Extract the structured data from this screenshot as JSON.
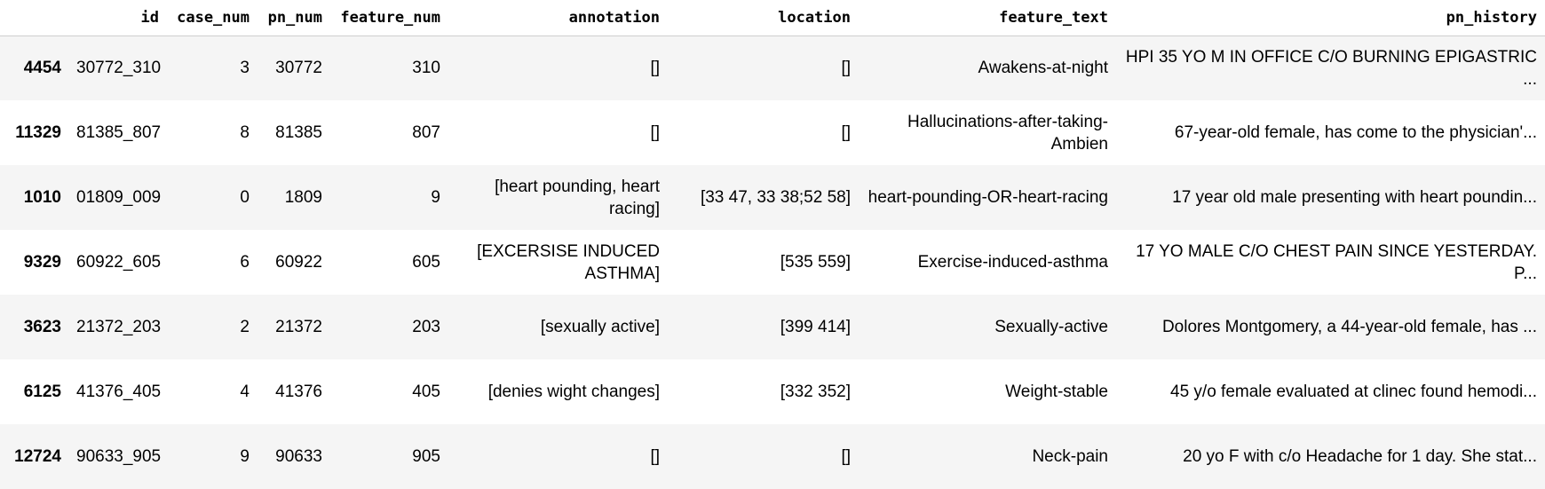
{
  "table": {
    "index_header": "",
    "columns": [
      "id",
      "case_num",
      "pn_num",
      "feature_num",
      "annotation",
      "location",
      "feature_text",
      "pn_history"
    ],
    "rows": [
      {
        "index": "4454",
        "cells": [
          "30772_310",
          "3",
          "30772",
          "310",
          "[]",
          "[]",
          "Awakens-at-night",
          "HPI 35 YO M IN OFFICE C/O BURNING EPIGASTRIC ..."
        ]
      },
      {
        "index": "11329",
        "cells": [
          "81385_807",
          "8",
          "81385",
          "807",
          "[]",
          "[]",
          "Hallucinations-after-taking-Ambien",
          "67-year-old female, has come to the physician'..."
        ]
      },
      {
        "index": "1010",
        "cells": [
          "01809_009",
          "0",
          "1809",
          "9",
          "[heart pounding, heart racing]",
          "[33 47, 33 38;52 58]",
          "heart-pounding-OR-heart-racing",
          "17 year old male presenting with heart poundin..."
        ]
      },
      {
        "index": "9329",
        "cells": [
          "60922_605",
          "6",
          "60922",
          "605",
          "[EXCERSISE INDUCED ASTHMA]",
          "[535 559]",
          "Exercise-induced-asthma",
          "17 YO MALE C/O CHEST PAIN SINCE YESTERDAY. P..."
        ]
      },
      {
        "index": "3623",
        "cells": [
          "21372_203",
          "2",
          "21372",
          "203",
          "[sexually active]",
          "[399 414]",
          "Sexually-active",
          "Dolores Montgomery, a 44-year-old female, has ..."
        ]
      },
      {
        "index": "6125",
        "cells": [
          "41376_405",
          "4",
          "41376",
          "405",
          "[denies wight changes]",
          "[332 352]",
          "Weight-stable",
          "45 y/o female evaluated at clinec found hemodi..."
        ]
      },
      {
        "index": "12724",
        "cells": [
          "90633_905",
          "9",
          "90633",
          "905",
          "[]",
          "[]",
          "Neck-pain",
          "20 yo F with c/o Headache for 1 day. She stat..."
        ]
      }
    ]
  }
}
